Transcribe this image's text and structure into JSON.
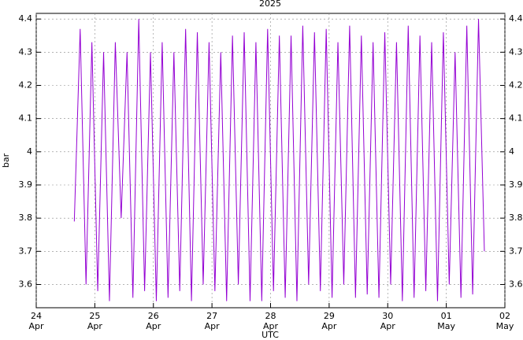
{
  "chart_data": {
    "type": "line",
    "title": "2025",
    "y_label": "bar",
    "x_label": "UTC",
    "color": "#9400d3",
    "grid": true,
    "xlim": [
      0,
      8
    ],
    "xticks": [
      {
        "value": 0,
        "label": "24 Apr"
      },
      {
        "value": 1,
        "label": "25 Apr"
      },
      {
        "value": 2,
        "label": "26 Apr"
      },
      {
        "value": 3,
        "label": "27 Apr"
      },
      {
        "value": 4,
        "label": "28 Apr"
      },
      {
        "value": 5,
        "label": "29 Apr"
      },
      {
        "value": 6,
        "label": "30 Apr"
      },
      {
        "value": 7,
        "label": "01 May"
      },
      {
        "value": 8,
        "label": "02 May"
      }
    ],
    "ylim": [
      3.53,
      4.417
    ],
    "yticks": [
      3.6,
      3.7,
      3.8,
      3.9,
      4,
      4.1,
      4.2,
      4.3,
      4.4
    ],
    "x": [
      0.65,
      0.75,
      0.85,
      0.95,
      1.05,
      1.15,
      1.25,
      1.35,
      1.45,
      1.55,
      1.65,
      1.75,
      1.85,
      1.95,
      2.05,
      2.15,
      2.25,
      2.35,
      2.45,
      2.55,
      2.65,
      2.75,
      2.85,
      2.95,
      3.05,
      3.15,
      3.25,
      3.35,
      3.45,
      3.55,
      3.65,
      3.75,
      3.85,
      3.95,
      4.05,
      4.15,
      4.25,
      4.35,
      4.45,
      4.55,
      4.65,
      4.75,
      4.85,
      4.95,
      5.05,
      5.15,
      5.25,
      5.35,
      5.45,
      5.55,
      5.65,
      5.75,
      5.85,
      5.95,
      6.05,
      6.15,
      6.25,
      6.35,
      6.45,
      6.55,
      6.65,
      6.75,
      6.85,
      6.95,
      7.05,
      7.15,
      7.25,
      7.35,
      7.45,
      7.55,
      7.65
    ],
    "series": [
      {
        "name": "bar",
        "color": "#9400d3",
        "values": [
          3.79,
          4.37,
          3.6,
          4.33,
          3.58,
          4.3,
          3.55,
          4.33,
          3.8,
          4.3,
          3.56,
          4.4,
          3.58,
          4.3,
          3.55,
          4.33,
          3.56,
          4.3,
          3.58,
          4.37,
          3.55,
          4.36,
          3.6,
          4.33,
          3.58,
          4.3,
          3.55,
          4.35,
          3.6,
          4.36,
          3.55,
          4.33,
          3.55,
          4.37,
          3.58,
          4.35,
          3.56,
          4.35,
          3.55,
          4.38,
          3.6,
          4.36,
          3.58,
          4.37,
          3.56,
          4.33,
          3.6,
          4.38,
          3.56,
          4.35,
          3.57,
          4.33,
          3.56,
          4.36,
          3.6,
          4.33,
          3.55,
          4.38,
          3.56,
          4.35,
          3.58,
          4.33,
          3.55,
          4.36,
          3.6,
          4.3,
          3.56,
          4.38,
          3.57,
          4.4,
          3.7
        ]
      }
    ]
  }
}
